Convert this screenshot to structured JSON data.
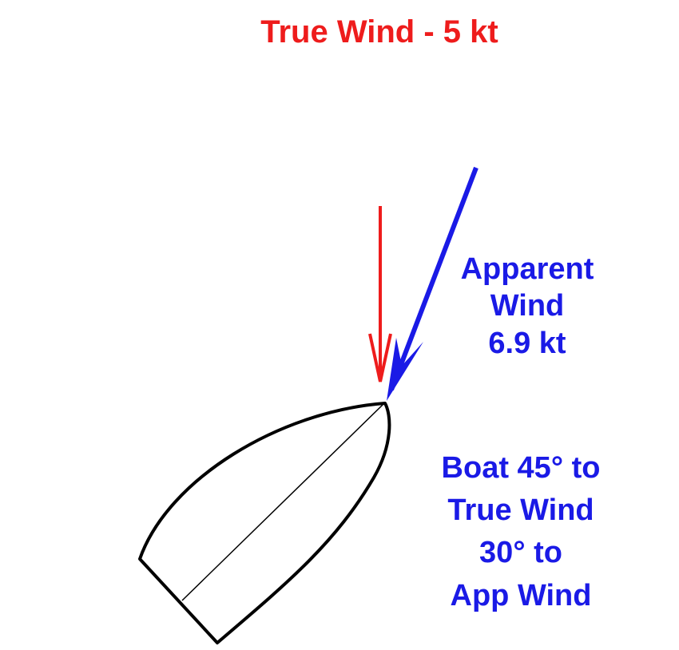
{
  "title": "True Wind - 5 kt",
  "apparent_wind": {
    "lines": [
      "Apparent",
      "Wind",
      "6.9 kt"
    ]
  },
  "boat_angles": {
    "lines": [
      "Boat 45° to",
      "True Wind",
      "30°  to",
      "App Wind"
    ]
  },
  "colors": {
    "true_wind": "#ee1c1c",
    "apparent_wind": "#1a1ae6",
    "hull": "#000000"
  }
}
